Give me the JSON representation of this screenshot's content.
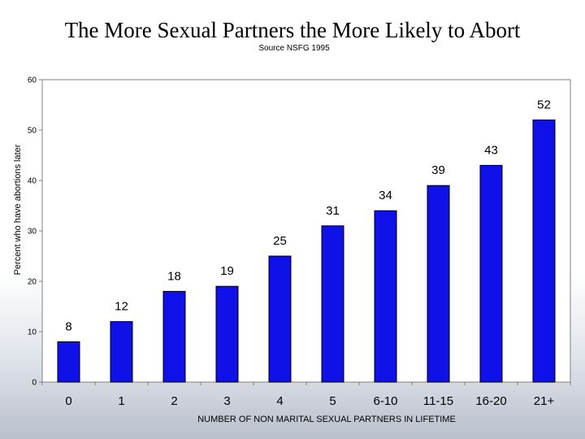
{
  "chart_data": {
    "type": "bar",
    "title": "The More Sexual Partners the More Likely to Abort",
    "subtitle": "Source NSFG 1995",
    "xlabel": "NUMBER OF NON MARITAL SEXUAL PARTNERS IN LIFETIME",
    "ylabel": "Percent who have abortions later",
    "ylim": [
      0,
      60
    ],
    "yticks": [
      0,
      10,
      20,
      30,
      40,
      50,
      60
    ],
    "categories": [
      "0",
      "1",
      "2",
      "3",
      "4",
      "5",
      "6-10",
      "11-15",
      "16-20",
      "21+"
    ],
    "series": [
      {
        "values": [
          8,
          12,
          18,
          19,
          25,
          31,
          34,
          39,
          43,
          52
        ],
        "color": "#1010e8"
      }
    ],
    "grid": false,
    "legend": "none"
  }
}
